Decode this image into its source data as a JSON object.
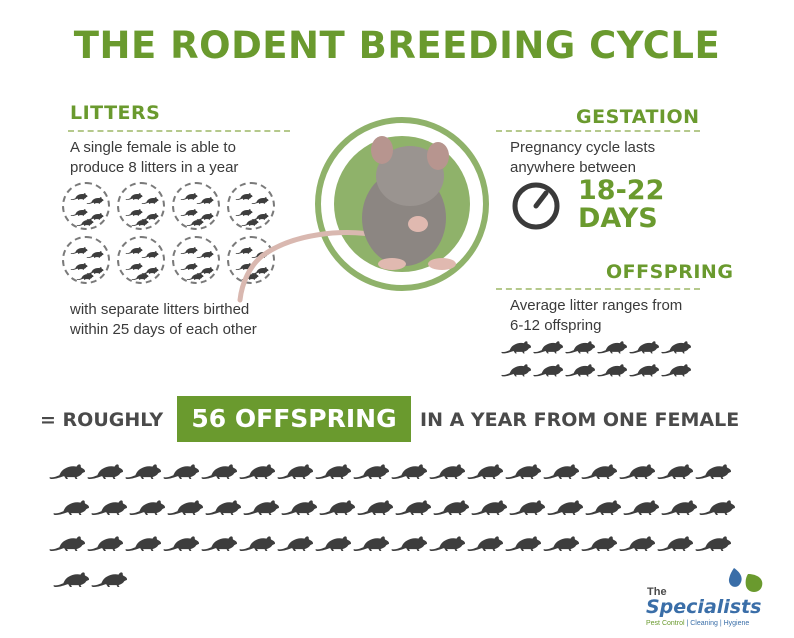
{
  "title": "THE RODENT BREEDING CYCLE",
  "litters": {
    "heading": "LITTERS",
    "text_top": "A single female is able to produce 8 litters in a year",
    "text_bottom": "with separate litters birthed within 25 days of each other",
    "litter_count": 8
  },
  "gestation": {
    "heading": "GESTATION",
    "text": "Pregnancy cycle lasts anywhere between",
    "days_range": "18-22",
    "days_label": "DAYS",
    "icon": "stopwatch-icon"
  },
  "offspring": {
    "heading": "OFFSPRING",
    "text": "Average litter ranges from 6-12 offspring",
    "rat_icon_count": 12
  },
  "summary": {
    "prefix": "= ROUGHLY",
    "highlight": "56 OFFSPRING",
    "suffix": "IN A YEAR FROM ONE FEMALE",
    "rat_icon_count": 56
  },
  "logo": {
    "the": "The",
    "name": "Specialists",
    "tagline_1": "Pest Control",
    "tagline_2": "Cleaning",
    "tagline_3": "Hygiene"
  },
  "colors": {
    "green": "#6a9a2e",
    "dark_text": "#3a3a3a",
    "rat": "#3d3d3d",
    "logo_blue": "#3a6ea8"
  }
}
